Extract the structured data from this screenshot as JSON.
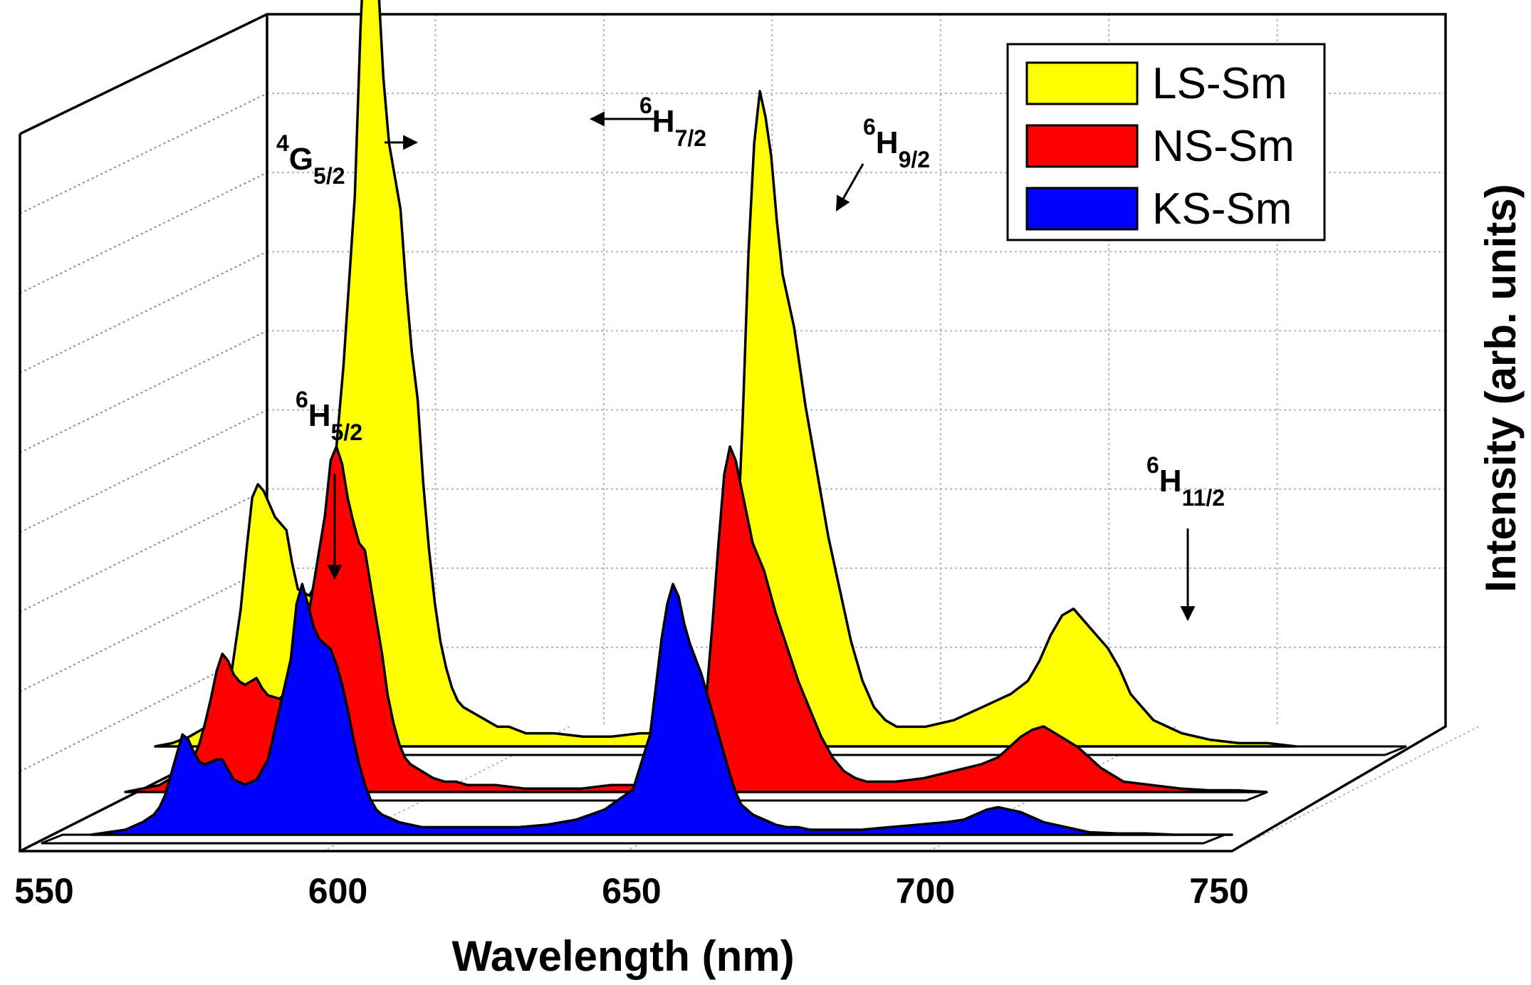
{
  "chart_data": {
    "type": "area",
    "view": "3d-waterfall",
    "xlabel": "Wavelength (nm)",
    "ylabel": "Intensity (arb. units)",
    "xlim": [
      550,
      750
    ],
    "x_ticks": [
      "550",
      "600",
      "650",
      "700",
      "750"
    ],
    "grid": true,
    "legend_position": "top-right",
    "series": [
      {
        "name": "LS-Sm",
        "color": "#ffff00",
        "x": [
          550,
          553,
          556,
          559,
          561,
          562,
          563,
          564,
          565,
          566,
          567,
          568,
          569,
          570,
          571,
          572,
          573,
          574,
          575,
          577,
          579,
          581,
          583,
          585,
          586,
          587,
          588,
          589,
          590,
          591,
          592,
          593,
          594,
          595,
          596,
          597,
          598,
          599,
          600,
          601,
          602,
          603,
          604,
          606,
          608,
          610,
          612,
          615,
          620,
          625,
          630,
          635,
          640,
          645,
          648,
          650,
          651,
          652,
          653,
          654,
          655,
          656,
          657,
          658,
          659,
          660,
          661,
          662,
          663,
          664,
          666,
          668,
          670,
          672,
          674,
          676,
          678,
          680,
          685,
          690,
          695,
          700,
          703,
          705,
          707,
          709,
          711,
          713,
          715,
          717,
          719,
          721,
          723,
          725,
          730,
          735,
          740,
          745,
          750
        ],
        "values": [
          0,
          0.5,
          1.5,
          3,
          5,
          7,
          9,
          15,
          21,
          30,
          38,
          40,
          39,
          37,
          35,
          34,
          33,
          28,
          24,
          23,
          26,
          38,
          58,
          84,
          110,
          128,
          130,
          118,
          102,
          92,
          87,
          82,
          70,
          60,
          53,
          40,
          30,
          22,
          16,
          12,
          9,
          7,
          6,
          5,
          4,
          3,
          3,
          2,
          2,
          1.5,
          1.5,
          2,
          2,
          3,
          5,
          10,
          17,
          30,
          50,
          75,
          92,
          100,
          96,
          90,
          80,
          72,
          68,
          64,
          58,
          52,
          42,
          32,
          24,
          16,
          10,
          6,
          4,
          3,
          3,
          4,
          6,
          8,
          10,
          13,
          17,
          20,
          21,
          19,
          17,
          15,
          12,
          8,
          6,
          4,
          2,
          1,
          0.5,
          0.5,
          0
        ]
      },
      {
        "name": "NS-Sm",
        "color": "#ff0000",
        "x": [
          550,
          553,
          556,
          559,
          561,
          562,
          563,
          564,
          565,
          566,
          567,
          568,
          569,
          570,
          571,
          572,
          573,
          574,
          575,
          577,
          579,
          581,
          583,
          585,
          586,
          587,
          588,
          589,
          590,
          591,
          592,
          593,
          594,
          595,
          596,
          597,
          598,
          599,
          600,
          601,
          602,
          603,
          604,
          606,
          608,
          610,
          612,
          615,
          620,
          625,
          630,
          635,
          640,
          645,
          648,
          650,
          651,
          652,
          653,
          654,
          655,
          656,
          657,
          658,
          659,
          660,
          661,
          662,
          663,
          664,
          666,
          668,
          670,
          672,
          674,
          676,
          678,
          680,
          685,
          690,
          695,
          700,
          703,
          705,
          707,
          709,
          711,
          713,
          715,
          717,
          719,
          721,
          723,
          725,
          730,
          735,
          740,
          745,
          750
        ],
        "values": [
          0,
          1,
          2,
          5,
          7,
          10,
          14,
          20,
          27,
          35,
          40,
          38,
          34,
          32,
          31,
          32,
          33,
          30,
          28,
          27,
          30,
          40,
          60,
          80,
          96,
          100,
          95,
          85,
          78,
          72,
          70,
          60,
          50,
          40,
          28,
          20,
          14,
          10,
          8,
          7,
          6,
          5,
          4,
          3,
          3,
          2,
          2,
          2,
          1,
          1,
          1,
          2,
          2,
          3,
          5,
          9,
          17,
          30,
          50,
          72,
          92,
          100,
          96,
          88,
          80,
          72,
          68,
          64,
          58,
          52,
          42,
          32,
          24,
          16,
          10,
          6,
          4,
          3,
          3,
          4,
          6,
          8,
          10,
          13,
          16,
          18,
          19,
          17,
          15,
          13,
          10,
          7,
          5,
          3,
          2,
          1,
          0.5,
          0.5,
          0
        ]
      },
      {
        "name": "KS-Sm",
        "color": "#0000ff",
        "x": [
          550,
          553,
          556,
          559,
          561,
          562,
          563,
          564,
          565,
          566,
          567,
          568,
          569,
          570,
          571,
          572,
          573,
          574,
          575,
          577,
          579,
          581,
          583,
          585,
          586,
          587,
          588,
          589,
          590,
          591,
          592,
          593,
          594,
          595,
          596,
          597,
          598,
          599,
          600,
          601,
          602,
          603,
          604,
          606,
          608,
          610,
          612,
          615,
          620,
          625,
          630,
          635,
          640,
          645,
          648,
          650,
          651,
          652,
          653,
          654,
          655,
          656,
          657,
          658,
          659,
          660,
          661,
          662,
          663,
          664,
          666,
          668,
          670,
          672,
          674,
          676,
          678,
          680,
          685,
          690,
          695,
          700,
          703,
          705,
          707,
          709,
          711,
          713,
          715,
          717,
          719,
          721,
          723,
          725,
          730,
          735,
          740,
          745,
          750
        ],
        "values": [
          0,
          1,
          2,
          5,
          8,
          11,
          16,
          24,
          32,
          40,
          38,
          33,
          29,
          28,
          29,
          30,
          30,
          26,
          22,
          20,
          22,
          30,
          50,
          70,
          92,
          100,
          92,
          83,
          78,
          76,
          74,
          68,
          60,
          50,
          38,
          28,
          20,
          14,
          10,
          8,
          7,
          6,
          5,
          4,
          3,
          3,
          3,
          3,
          3,
          3,
          4,
          6,
          10,
          18,
          40,
          78,
          92,
          100,
          95,
          84,
          76,
          70,
          64,
          56,
          48,
          40,
          32,
          24,
          17,
          12,
          8,
          6,
          4,
          3,
          3,
          2,
          2,
          2,
          2,
          3,
          4,
          5,
          6,
          8,
          10,
          11,
          10,
          9,
          7,
          5,
          4,
          3,
          2,
          1,
          0.5,
          0.5,
          0,
          0,
          0
        ]
      }
    ],
    "annotations": [
      {
        "sup": "4",
        "main": "G",
        "sub": "5/2",
        "arrow": "right"
      },
      {
        "sup": "6",
        "main": "H",
        "sub": "7/2",
        "arrow": "left"
      },
      {
        "sup": "6",
        "main": "H",
        "sub": "9/2",
        "arrow": "down-left"
      },
      {
        "sup": "6",
        "main": "H",
        "sub": "5/2",
        "arrow": "down"
      },
      {
        "sup": "6",
        "main": "H",
        "sub": "11/2",
        "arrow": "down"
      }
    ]
  }
}
